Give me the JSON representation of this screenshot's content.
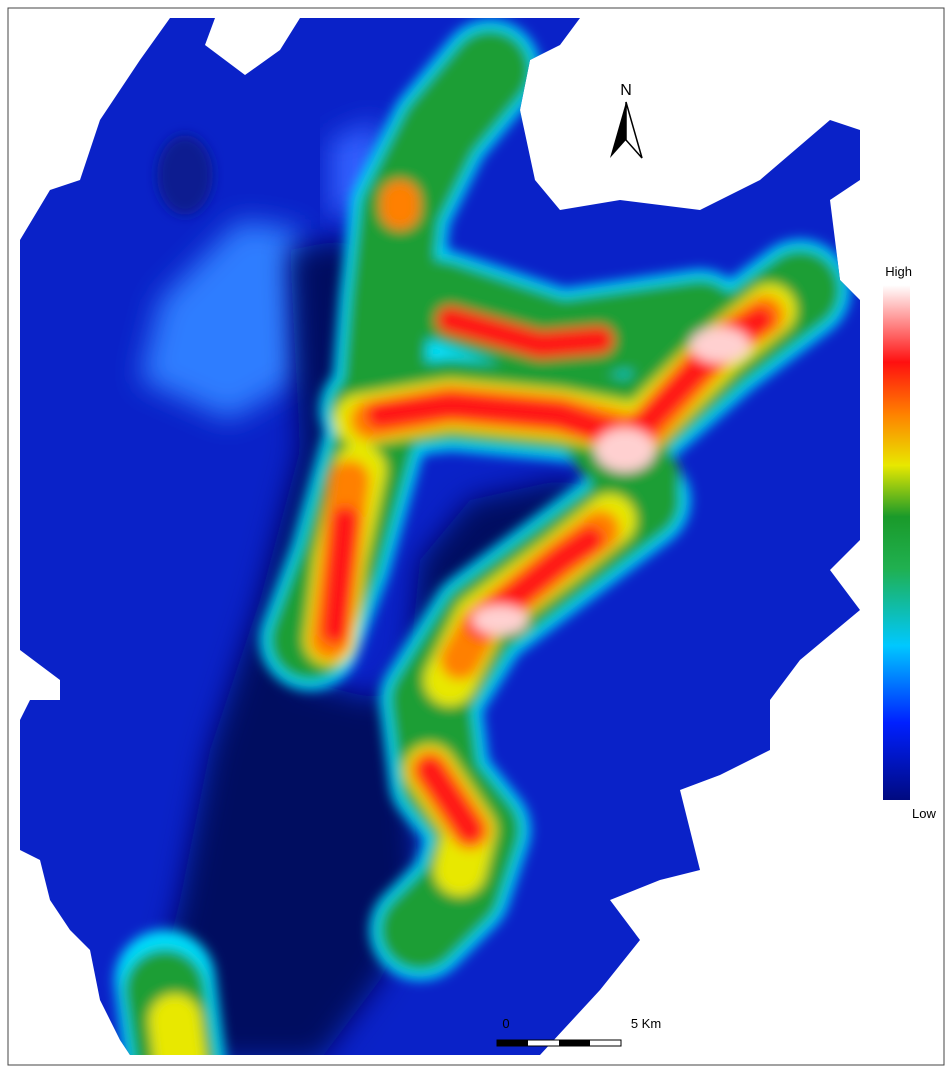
{
  "map": {
    "north_label": "N",
    "legend": {
      "high": "High",
      "low": "Low"
    },
    "scale_bar": {
      "start": "0",
      "end": "5 Km"
    }
  }
}
